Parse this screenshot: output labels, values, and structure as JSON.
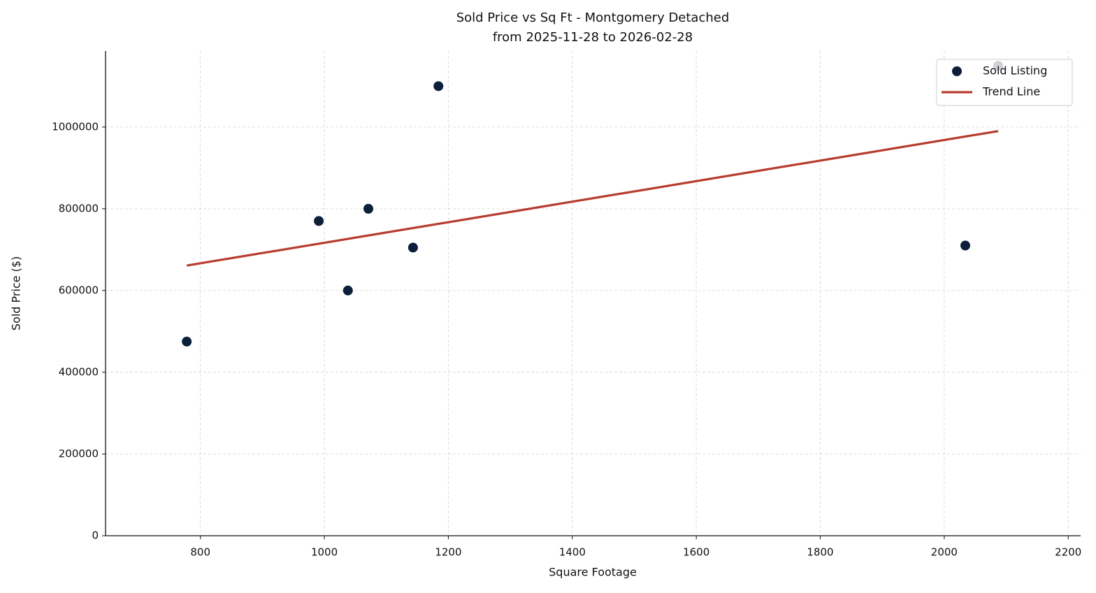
{
  "chart_data": {
    "type": "scatter",
    "title": "Sold Price vs Sq Ft - Montgomery Detached",
    "subtitle": "from 2025-11-28 to 2026-02-28",
    "x_label": "Square Footage",
    "y_label": "Sold Price ($)",
    "series": [
      {
        "name": "Sold Listing",
        "type": "scatter",
        "color": "#0b1f3a",
        "x": [
          778,
          991,
          1038,
          1071,
          1143,
          1184,
          2034,
          2087
        ],
        "values": [
          475000,
          770000,
          600000,
          800000,
          705000,
          1100000,
          710000,
          1150000
        ]
      },
      {
        "name": "Trend Line",
        "type": "line",
        "color": "#b83c2e",
        "x": [
          778,
          2087
        ],
        "values": [
          661000,
          990000
        ]
      }
    ],
    "xlim": [
      647,
      2220
    ],
    "xticks": [
      800,
      1000,
      1200,
      1400,
      1600,
      1800,
      2000,
      2200
    ],
    "ylim": [
      0,
      1186000
    ],
    "yticks": [
      0,
      200000,
      400000,
      600000,
      800000,
      1000000
    ],
    "grid": true,
    "legend": "upper right"
  }
}
